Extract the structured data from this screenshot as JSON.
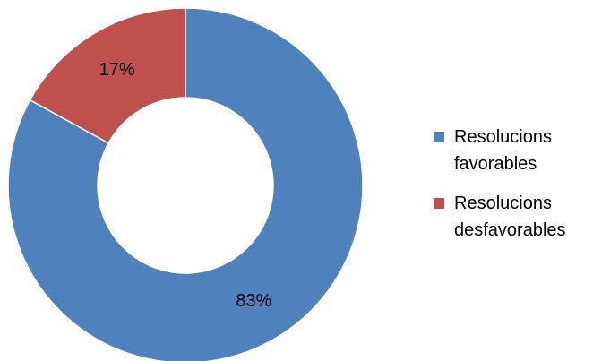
{
  "chart_data": {
    "type": "pie",
    "donut": true,
    "categories": [
      "Resolucions favorables",
      "Resolucions desfavorables"
    ],
    "values": [
      83,
      17
    ],
    "value_labels": [
      "83%",
      "17%"
    ],
    "colors": [
      "#4F81BD",
      "#C0504D"
    ],
    "legend_position": "right"
  }
}
